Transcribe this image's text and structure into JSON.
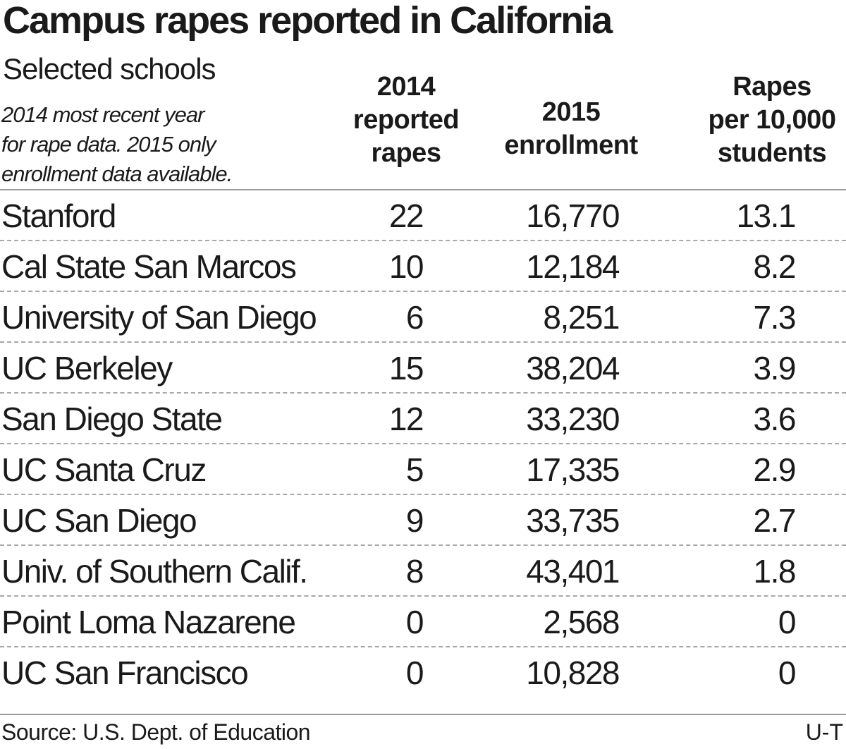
{
  "chart_data": {
    "type": "table",
    "title": "Campus rapes reported in California",
    "subtitle": "Selected schools",
    "note": [
      "2014 most recent year",
      "for rape data. 2015 only",
      "enrollment data available."
    ],
    "columns": {
      "school": "",
      "rapes": [
        "2014",
        "reported",
        "rapes"
      ],
      "enrollment": [
        "2015",
        "enrollment"
      ],
      "rate": [
        "Rapes",
        "per 10,000",
        "students"
      ]
    },
    "rows": [
      {
        "school": "Stanford",
        "rapes": "22",
        "enrollment": "16,770",
        "rate": "13.1"
      },
      {
        "school": "Cal State San Marcos",
        "rapes": "10",
        "enrollment": "12,184",
        "rate": "8.2"
      },
      {
        "school": "University of San Diego",
        "rapes": "6",
        "enrollment": "8,251",
        "rate": "7.3"
      },
      {
        "school": "UC Berkeley",
        "rapes": "15",
        "enrollment": "38,204",
        "rate": "3.9"
      },
      {
        "school": "San Diego State",
        "rapes": "12",
        "enrollment": "33,230",
        "rate": "3.6"
      },
      {
        "school": "UC Santa Cruz",
        "rapes": "5",
        "enrollment": "17,335",
        "rate": "2.9"
      },
      {
        "school": "UC San Diego",
        "rapes": "9",
        "enrollment": "33,735",
        "rate": "2.7"
      },
      {
        "school": "Univ. of Southern Calif.",
        "rapes": "8",
        "enrollment": "43,401",
        "rate": "1.8"
      },
      {
        "school": "Point Loma Nazarene",
        "rapes": "0",
        "enrollment": "2,568",
        "rate": "0"
      },
      {
        "school": "UC San Francisco",
        "rapes": "0",
        "enrollment": "10,828",
        "rate": "0"
      }
    ],
    "source": "Source: U.S. Dept. of Education",
    "credit": "U-T"
  }
}
